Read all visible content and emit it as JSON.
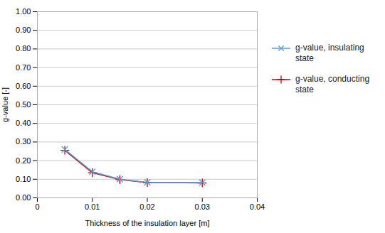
{
  "chart_data": {
    "type": "line",
    "xlabel": "Thickness of the insulation layer [m]",
    "ylabel": "g-value [-]",
    "x": [
      0.005,
      0.01,
      0.015,
      0.02,
      0.03
    ],
    "series": [
      {
        "name": "g-value, insulating\nstate",
        "color": "#5B9BD5",
        "marker": "x",
        "values": [
          0.26,
          0.14,
          0.1,
          0.083,
          0.082
        ]
      },
      {
        "name": "g-value, conducting\nstate",
        "color": "#C00000",
        "marker": "plus",
        "values": [
          0.255,
          0.135,
          0.098,
          0.082,
          0.08
        ]
      }
    ],
    "xlim": [
      0,
      0.04
    ],
    "ylim": [
      0.0,
      1.0
    ],
    "xticks": [
      0,
      0.01,
      0.02,
      0.03,
      0.04
    ],
    "yticks": [
      {
        "value": 0,
        "label": "0.00"
      },
      {
        "value": 0.1,
        "label": "0.10"
      },
      {
        "value": 0.2,
        "label": "0.20"
      },
      {
        "value": 0.3,
        "label": "0.30"
      },
      {
        "value": 0.4,
        "label": "0.40"
      },
      {
        "value": 0.5,
        "label": "0.50"
      },
      {
        "value": 0.6,
        "label": "0.60"
      },
      {
        "value": 0.7,
        "label": "0.70"
      },
      {
        "value": 0.8,
        "label": "0.80"
      },
      {
        "value": 0.9,
        "label": "0.90"
      },
      {
        "value": 1.0,
        "label": "1.00"
      }
    ],
    "grid": "y",
    "legend": "right"
  }
}
